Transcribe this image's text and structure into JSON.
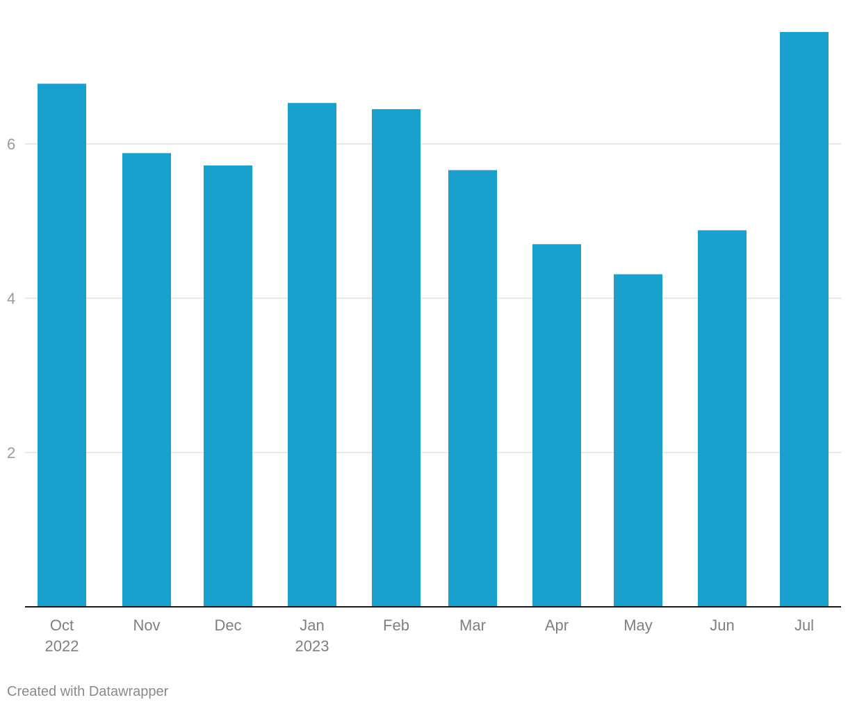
{
  "chart_data": {
    "type": "bar",
    "title": "",
    "xlabel": "",
    "ylabel": "",
    "categories": [
      "Oct 2022",
      "Nov",
      "Dec",
      "Jan 2023",
      "Feb",
      "Mar",
      "Apr",
      "May",
      "Jun",
      "Jul"
    ],
    "tick_labels": [
      [
        "Oct",
        "2022"
      ],
      [
        "Nov"
      ],
      [
        "Dec"
      ],
      [
        "Jan",
        "2023"
      ],
      [
        "Feb"
      ],
      [
        "Mar"
      ],
      [
        "Apr"
      ],
      [
        "May"
      ],
      [
        "Jun"
      ],
      [
        "Jul"
      ]
    ],
    "values": [
      6.78,
      5.88,
      5.72,
      6.53,
      6.45,
      5.66,
      4.7,
      4.31,
      4.88,
      7.45
    ],
    "ylim": [
      0,
      7.85
    ],
    "yticks": [
      2,
      4,
      6
    ],
    "grid": true,
    "legend": "none",
    "bar_color": "#1aa0cd"
  },
  "footer": {
    "credit": "Created with Datawrapper"
  }
}
